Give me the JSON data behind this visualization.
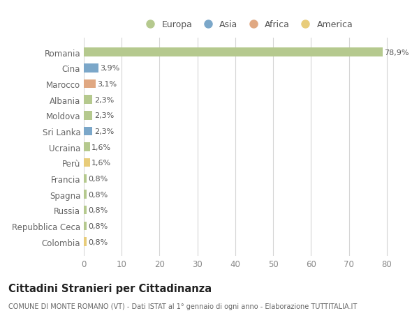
{
  "countries": [
    "Romania",
    "Cina",
    "Marocco",
    "Albania",
    "Moldova",
    "Sri Lanka",
    "Ucraina",
    "Perù",
    "Francia",
    "Spagna",
    "Russia",
    "Repubblica Ceca",
    "Colombia"
  ],
  "values": [
    78.9,
    3.9,
    3.1,
    2.3,
    2.3,
    2.3,
    1.6,
    1.6,
    0.8,
    0.8,
    0.8,
    0.8,
    0.8
  ],
  "labels": [
    "78,9%",
    "3,9%",
    "3,1%",
    "2,3%",
    "2,3%",
    "2,3%",
    "1,6%",
    "1,6%",
    "0,8%",
    "0,8%",
    "0,8%",
    "0,8%",
    "0,8%"
  ],
  "continents": [
    "Europa",
    "Asia",
    "Africa",
    "Europa",
    "Europa",
    "Asia",
    "Europa",
    "America",
    "Europa",
    "Europa",
    "Europa",
    "Europa",
    "America"
  ],
  "continent_colors": {
    "Europa": "#b5c98e",
    "Asia": "#7ba7c9",
    "Africa": "#e0a882",
    "America": "#e8cc7a"
  },
  "legend_entries": [
    "Europa",
    "Asia",
    "Africa",
    "America"
  ],
  "legend_colors": [
    "#b5c98e",
    "#7ba7c9",
    "#e0a882",
    "#e8cc7a"
  ],
  "title": "Cittadini Stranieri per Cittadinanza",
  "subtitle": "COMUNE DI MONTE ROMANO (VT) - Dati ISTAT al 1° gennaio di ogni anno - Elaborazione TUTTITALIA.IT",
  "xlim": [
    0,
    83
  ],
  "xticks": [
    0,
    10,
    20,
    30,
    40,
    50,
    60,
    70,
    80
  ],
  "bg_color": "#ffffff",
  "grid_color": "#d5d5d5"
}
